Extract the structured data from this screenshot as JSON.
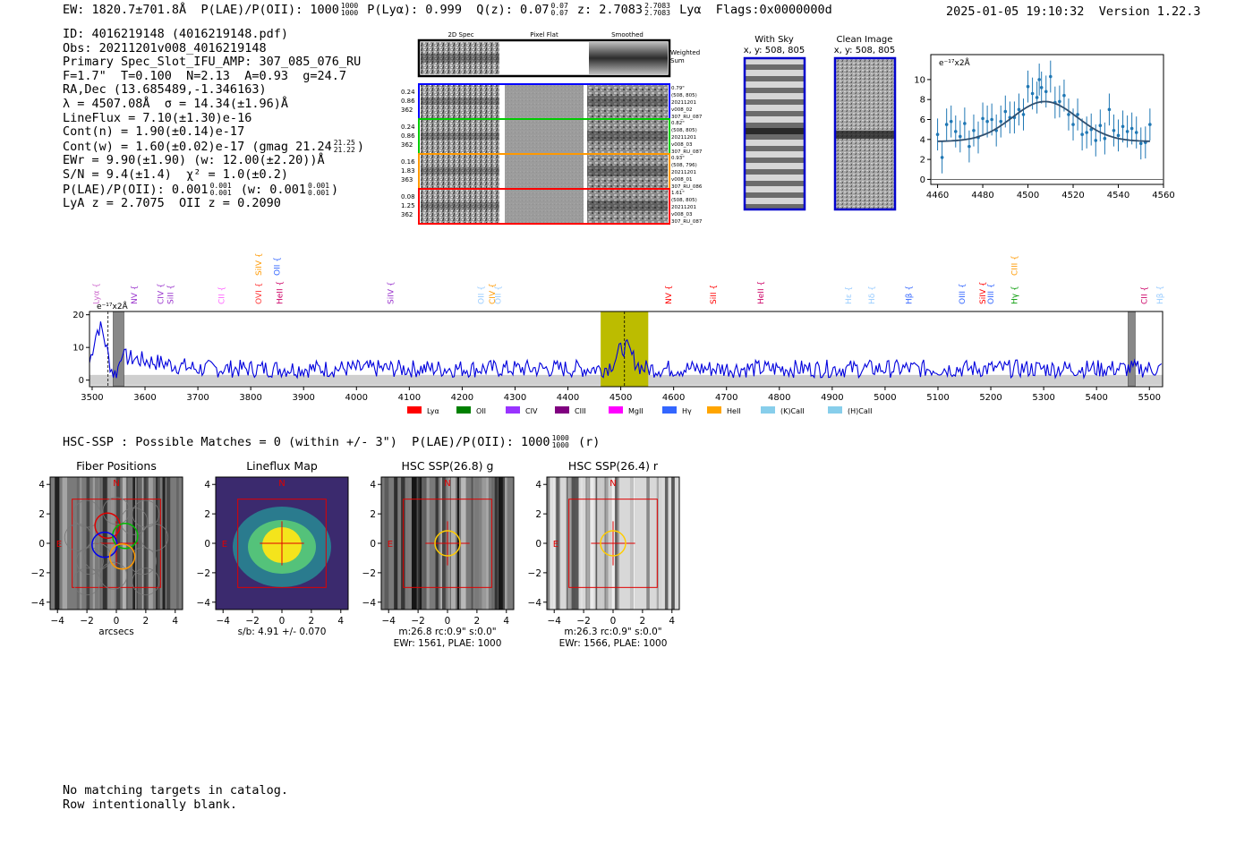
{
  "header": {
    "ew": "EW: 1820.7±701.8Å",
    "plae_label": "P(LAE)/P(OII): 1000",
    "plae_hi": "1000",
    "plae_lo": "1000",
    "plya": "P(Lyα): 0.999",
    "qz_label": "Q(z): 0.07",
    "qz_hi": "0.07",
    "qz_lo": "0.07",
    "z_label": "z: 2.7083",
    "z_hi": "2.7083",
    "z_lo": "2.7083",
    "lya": "Lyα",
    "flags": "Flags:0x0000000d",
    "datetime": "2025-01-05 19:10:32",
    "version": "Version 1.22.3"
  },
  "info": {
    "id": "ID: 4016219148 (4016219148.pdf)",
    "obs": "Obs: 20211201v008_4016219148",
    "primary": "Primary Spec_Slot_IFU_AMP: 307_085_076_RU",
    "params": "F=1.7\"  T=0.100  N=2.13  A=0.93  g=24.7",
    "radec": "RA,Dec (13.685489,-1.346163)",
    "lambda": "λ = 4507.08Å  σ = 14.34(±1.96)Å",
    "lineflux": "LineFlux = 7.10(±1.30)e-16",
    "contn": "Cont(n) = 1.90(±0.14)e-17",
    "contw": "Cont(w) = 1.60(±0.02)e-17 (gmag 21.24",
    "contw_hi": "21.25",
    "contw_lo": "21.22",
    "ewr": "EWr = 9.90(±1.90) (w: 12.00(±2.20))Å",
    "sn": "S/N = 9.4(±1.4)  χ² = 1.0(±0.2)",
    "plae": "P(LAE)/P(OII): 0.001",
    "plae_hi": "0.001",
    "plae_lo": "0.001",
    "plae_w": "(w: 0.001",
    "plae_w_hi": "0.001",
    "plae_w_lo": "0.001",
    "lyaz": "LyA z = 2.7075  OII z = 0.2090"
  },
  "cutouts": {
    "col_titles": [
      "2D Spec",
      "Pixel Flat",
      "Smoothed"
    ],
    "weighted_label": [
      "Weighted",
      "Sum"
    ],
    "rows": [
      {
        "left": [
          "0.24",
          "0.86",
          "362"
        ],
        "right": [
          "0.79\"",
          "(508, 805)",
          "20211201",
          "v008_02",
          "307_RU_087"
        ],
        "color": "#0000ff"
      },
      {
        "left": [
          "0.24",
          "0.86",
          "362"
        ],
        "right": [
          "0.82\"",
          "(508, 805)",
          "20211201",
          "v008_03",
          "307_RU_087"
        ],
        "color": "#00cc00"
      },
      {
        "left": [
          "0.16",
          "1.83",
          "363"
        ],
        "right": [
          "0.93\"",
          "(508, 796)",
          "20211201",
          "v008_01",
          "307_RU_086"
        ],
        "color": "#ff9900"
      },
      {
        "left": [
          "0.08",
          "1.25",
          "362"
        ],
        "right": [
          "1.61\"",
          "(508, 805)",
          "20211201",
          "v008_03",
          "307_RU_087"
        ],
        "color": "#ff0000"
      }
    ],
    "with_sky": [
      "With Sky",
      "x, y: 508, 805"
    ],
    "clean": [
      "Clean Image",
      "x, y: 508, 805"
    ]
  },
  "chart_data": [
    {
      "type": "scatter",
      "title": "",
      "ylabel": "e⁻¹⁷x2Å",
      "xlim": [
        4457,
        4560
      ],
      "ylim": [
        -0.5,
        12.5
      ],
      "xticks": [
        4460,
        4480,
        4500,
        4520,
        4540,
        4560
      ],
      "yticks": [
        0,
        2,
        4,
        6,
        8,
        10
      ],
      "points": [
        [
          4460,
          4.5
        ],
        [
          4462,
          2.2
        ],
        [
          4464,
          5.5
        ],
        [
          4466,
          5.8
        ],
        [
          4468,
          4.8
        ],
        [
          4470,
          4.3
        ],
        [
          4472,
          5.6
        ],
        [
          4474,
          3.3
        ],
        [
          4476,
          4.9
        ],
        [
          4478,
          4.2
        ],
        [
          4480,
          6.1
        ],
        [
          4482,
          5.8
        ],
        [
          4484,
          6.0
        ],
        [
          4486,
          4.9
        ],
        [
          4488,
          5.8
        ],
        [
          4490,
          6.8
        ],
        [
          4492,
          6.2
        ],
        [
          4494,
          6.2
        ],
        [
          4496,
          7.0
        ],
        [
          4498,
          6.5
        ],
        [
          4500,
          9.3
        ],
        [
          4502,
          8.6
        ],
        [
          4504,
          8.2
        ],
        [
          4505,
          10.0
        ],
        [
          4506,
          9.2
        ],
        [
          4508,
          8.8
        ],
        [
          4510,
          10.3
        ],
        [
          4512,
          7.7
        ],
        [
          4514,
          7.8
        ],
        [
          4516,
          8.4
        ],
        [
          4518,
          6.5
        ],
        [
          4520,
          5.5
        ],
        [
          4522,
          6.5
        ],
        [
          4524,
          4.5
        ],
        [
          4526,
          4.7
        ],
        [
          4528,
          5.0
        ],
        [
          4530,
          3.9
        ],
        [
          4532,
          5.4
        ],
        [
          4534,
          4.1
        ],
        [
          4536,
          7.0
        ],
        [
          4538,
          4.9
        ],
        [
          4540,
          4.4
        ],
        [
          4542,
          5.3
        ],
        [
          4544,
          4.8
        ],
        [
          4546,
          5.1
        ],
        [
          4548,
          4.7
        ],
        [
          4550,
          3.6
        ],
        [
          4552,
          3.7
        ],
        [
          4554,
          5.5
        ]
      ],
      "fit": {
        "amp": 4.0,
        "center": 4507.5,
        "sigma": 14.3,
        "base": 3.8
      }
    },
    {
      "type": "line",
      "ylabel": "e⁻¹⁷x2Å",
      "xlim": [
        3495,
        5525
      ],
      "ylim": [
        -2,
        21
      ],
      "xticks": [
        3500,
        3600,
        3700,
        3800,
        3900,
        4000,
        4100,
        4200,
        4300,
        4400,
        4500,
        4600,
        4700,
        4800,
        4900,
        5000,
        5100,
        5200,
        5300,
        5400,
        5500
      ],
      "yticks": [
        0,
        10,
        20
      ],
      "emission_line": 4507,
      "highlight": [
        4462,
        4552
      ],
      "masked": [
        [
          3540,
          3560
        ],
        [
          5460,
          5473
        ]
      ],
      "dashed": [
        3530
      ],
      "lines": [
        {
          "name": "Lyα",
          "x": 3508,
          "color": "#cc66cc",
          "hi": false
        },
        {
          "name": "NV",
          "x": 3580,
          "color": "#9933cc",
          "hi": false
        },
        {
          "name": "CIV",
          "x": 3630,
          "color": "#9933cc",
          "hi": false
        },
        {
          "name": "SiII",
          "x": 3648,
          "color": "#9933cc",
          "hi": false
        },
        {
          "name": "CII",
          "x": 3745,
          "color": "#ff66ff",
          "hi": false
        },
        {
          "name": "SiIV",
          "x": 3815,
          "color": "#ff9900",
          "hi": true
        },
        {
          "name": "OII",
          "x": 3850,
          "color": "#3366ff",
          "hi": true
        },
        {
          "name": "OVI",
          "x": 3815,
          "color": "#ff3333",
          "hi": false
        },
        {
          "name": "HeII",
          "x": 3855,
          "color": "#cc0066",
          "hi": false
        },
        {
          "name": "SiIV",
          "x": 4065,
          "color": "#9933cc",
          "hi": false
        },
        {
          "name": "OII",
          "x": 4236,
          "color": "#99ccff",
          "hi": false
        },
        {
          "name": "CIV",
          "x": 4257,
          "color": "#ff9900",
          "hi": false
        },
        {
          "name": "OII",
          "x": 4268,
          "color": "#99ccff",
          "hi": false
        },
        {
          "name": "NV",
          "x": 4590,
          "color": "#ff0000",
          "hi": false
        },
        {
          "name": "SiII",
          "x": 4675,
          "color": "#ff0000",
          "hi": false
        },
        {
          "name": "HeII",
          "x": 4765,
          "color": "#cc0066",
          "hi": false
        },
        {
          "name": "Hε",
          "x": 4931,
          "color": "#99ccff",
          "hi": false
        },
        {
          "name": "Hδ",
          "x": 4975,
          "color": "#99ccff",
          "hi": false
        },
        {
          "name": "Hβ",
          "x": 5045,
          "color": "#3366ff",
          "hi": false
        },
        {
          "name": "OIII",
          "x": 5146,
          "color": "#3366ff",
          "hi": false
        },
        {
          "name": "SiIV",
          "x": 5185,
          "color": "#ff0000",
          "hi": false
        },
        {
          "name": "OIII",
          "x": 5200,
          "color": "#3366ff",
          "hi": false
        },
        {
          "name": "CIII",
          "x": 5245,
          "color": "#ff9900",
          "hi": true
        },
        {
          "name": "Hγ",
          "x": 5245,
          "color": "#009900",
          "hi": false
        },
        {
          "name": "CII",
          "x": 5490,
          "color": "#cc0066",
          "hi": false
        },
        {
          "name": "Hβ",
          "x": 5520,
          "color": "#99ccff",
          "hi": false
        }
      ],
      "legend": [
        {
          "name": "Lyα",
          "color": "#ff0000"
        },
        {
          "name": "OII",
          "color": "#008000"
        },
        {
          "name": "CIV",
          "color": "#9933ff"
        },
        {
          "name": "CIII",
          "color": "#800080"
        },
        {
          "name": "MgII",
          "color": "#ff00ff"
        },
        {
          "name": "Hγ",
          "color": "#3366ff"
        },
        {
          "name": "HeII",
          "color": "#ffa500"
        },
        {
          "name": "(K)CaII",
          "color": "#87ceeb"
        },
        {
          "name": "(H)CaII",
          "color": "#87ceeb"
        }
      ]
    }
  ],
  "hsc": {
    "label": "HSC-SSP : Possible Matches = 0 (within +/- 3\")  P(LAE)/P(OII): 1000",
    "hi": "1000",
    "lo": "1000",
    "band": "(r)"
  },
  "panels": [
    {
      "title": "Fiber Positions",
      "xlabel": "arcsecs",
      "sub": ""
    },
    {
      "title": "Lineflux Map",
      "xlabel": "s/b: 4.91 +/- 0.070",
      "sub": ""
    },
    {
      "title": "HSC SSP(26.8) g",
      "xlabel": "m:26.8 rc:0.9\"  s:0.0\"",
      "sub": "EWr: 1561, PLAE: 1000"
    },
    {
      "title": "HSC SSP(26.4) r",
      "xlabel": "m:26.3 rc:0.9\"  s:0.0\"",
      "sub": "EWr: 1566, PLAE: 1000"
    }
  ],
  "panel_ticks": [
    "−4",
    "−2",
    "0",
    "2",
    "4"
  ],
  "compass": {
    "n": "N",
    "e": "E"
  },
  "footer": [
    "No matching targets in catalog.",
    "Row intentionally blank."
  ]
}
